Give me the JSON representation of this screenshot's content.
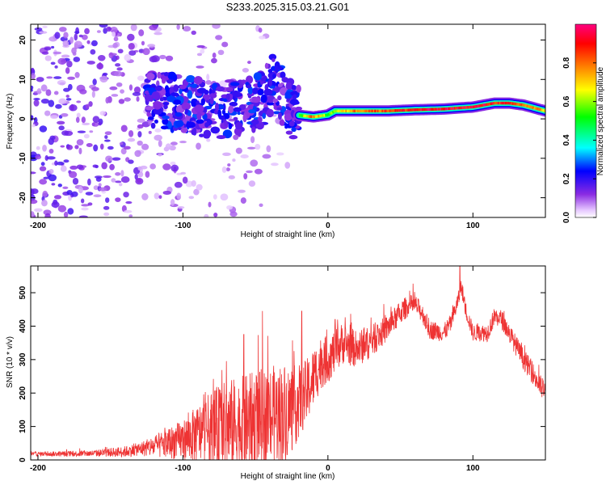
{
  "title": "S233.2025.315.03.21.G01",
  "chart_data": [
    {
      "type": "heatmap",
      "name": "spectrogram",
      "xlabel": "Height of straight line (km)",
      "ylabel": "Frequency (Hz)",
      "xlim": [
        -205,
        150
      ],
      "ylim": [
        -25,
        24
      ],
      "xticks": [
        -200,
        -100,
        0,
        100
      ],
      "yticks": [
        -20,
        -10,
        0,
        10,
        20
      ],
      "colorbar": {
        "label": "Normalized spectral amplitude",
        "range": [
          0.0,
          1.0
        ],
        "ticks": [
          0.0,
          0.2,
          0.4,
          0.6,
          0.8
        ],
        "tick_labels": [
          "0.0",
          "0.2",
          "0.4",
          "0.6",
          "0.8"
        ],
        "colors": [
          "#ffffff",
          "#e4c4ff",
          "#8a2be2",
          "#0000ff",
          "#00ffff",
          "#00ff00",
          "#ffff00",
          "#ff8000",
          "#ff0000",
          "#ff0080"
        ]
      },
      "ridge": {
        "x": [
          -120,
          -100,
          -80,
          -60,
          -45,
          -38,
          -30,
          -22,
          -10,
          0,
          5,
          20,
          40,
          60,
          80,
          100,
          115,
          125,
          135,
          145,
          150
        ],
        "y": [
          5,
          4,
          2,
          3,
          5,
          9,
          5,
          1,
          0.5,
          1,
          2,
          2,
          2,
          2.3,
          2.5,
          3,
          4,
          4,
          3.5,
          2.5,
          2
        ],
        "peak_amplitude": [
          0.2,
          0.22,
          0.25,
          0.28,
          0.35,
          0.35,
          0.3,
          0.45,
          0.8,
          0.55,
          0.6,
          0.8,
          0.85,
          0.9,
          0.92,
          0.92,
          0.9,
          0.85,
          0.8,
          0.75,
          0.7
        ]
      }
    },
    {
      "type": "line",
      "name": "snr",
      "xlabel": "Height of straight line (km)",
      "ylabel": "SNR (10 * v/v)",
      "xlim": [
        -205,
        150
      ],
      "ylim": [
        0,
        580
      ],
      "xticks": [
        -200,
        -100,
        0,
        100
      ],
      "yticks": [
        0,
        100,
        200,
        300,
        400,
        500
      ],
      "color": "#ee3333",
      "baseline": {
        "x": [
          -205,
          -180,
          -160,
          -140,
          -120,
          -100,
          -80,
          -60,
          -40,
          -25,
          -15,
          -5,
          0,
          10,
          20,
          30,
          40,
          50,
          55,
          60,
          65,
          70,
          80,
          85,
          90,
          92,
          95,
          100,
          110,
          115,
          120,
          125,
          135,
          140,
          145,
          150
        ],
        "y": [
          18,
          18,
          20,
          25,
          40,
          60,
          95,
          105,
          130,
          150,
          200,
          290,
          300,
          350,
          330,
          355,
          390,
          440,
          460,
          465,
          440,
          390,
          380,
          410,
          480,
          520,
          450,
          380,
          380,
          430,
          420,
          380,
          300,
          270,
          230,
          200
        ]
      },
      "noise_amplitude": {
        "x": [
          -205,
          -160,
          -130,
          -100,
          -70,
          -50,
          -30,
          -20,
          -10,
          0,
          40,
          60,
          100,
          150
        ],
        "y": [
          6,
          10,
          20,
          60,
          140,
          150,
          150,
          110,
          90,
          70,
          40,
          30,
          25,
          35
        ]
      },
      "spikes": {
        "x": [
          -58,
          -18,
          5,
          91
        ],
        "y": [
          375,
          445,
          420,
          578
        ]
      }
    }
  ]
}
